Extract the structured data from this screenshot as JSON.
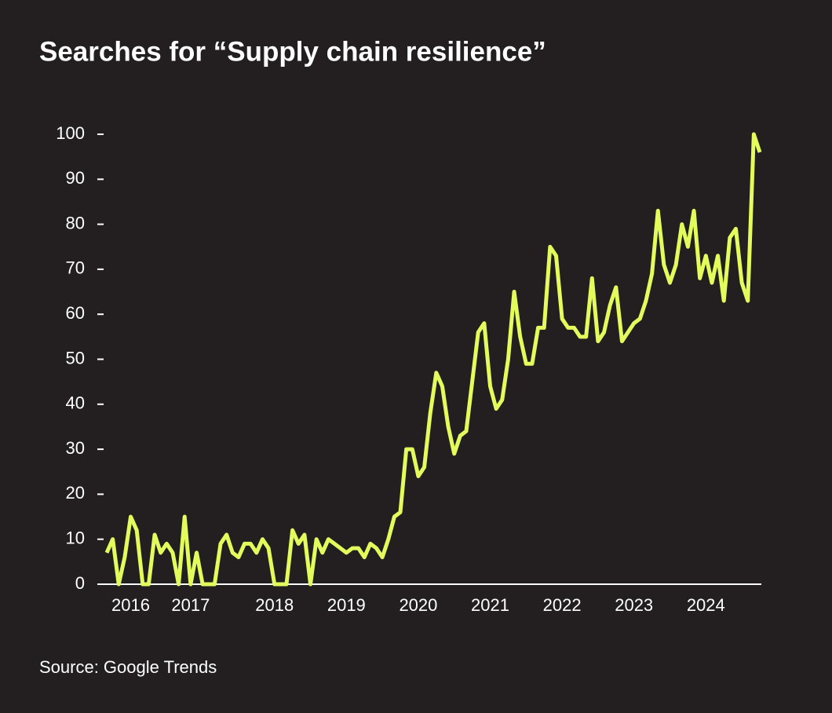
{
  "chart_data": {
    "type": "line",
    "title": "Searches for “Supply chain resilience”",
    "source": "Source: Google Trends",
    "categories": [
      null,
      null,
      null,
      null,
      "2016",
      null,
      null,
      null,
      null,
      null,
      null,
      null,
      null,
      null,
      "2017",
      null,
      null,
      null,
      null,
      null,
      null,
      null,
      null,
      null,
      null,
      null,
      null,
      null,
      "2018",
      null,
      null,
      null,
      null,
      null,
      null,
      null,
      null,
      null,
      null,
      null,
      "2019",
      null,
      null,
      null,
      null,
      null,
      null,
      null,
      null,
      null,
      null,
      null,
      "2020",
      null,
      null,
      null,
      null,
      null,
      null,
      null,
      null,
      null,
      null,
      null,
      "2021",
      null,
      null,
      null,
      null,
      null,
      null,
      null,
      null,
      null,
      null,
      null,
      "2022",
      null,
      null,
      null,
      null,
      null,
      null,
      null,
      null,
      null,
      null,
      null,
      "2023",
      null,
      null,
      null,
      null,
      null,
      null,
      null,
      null,
      null,
      null,
      null,
      "2024",
      null,
      null,
      null,
      null,
      null,
      null,
      null,
      null,
      null
    ],
    "values": [
      7,
      10,
      0,
      6,
      15,
      12,
      0,
      0,
      11,
      7,
      9,
      7,
      0,
      15,
      0,
      7,
      0,
      0,
      0,
      9,
      11,
      7,
      6,
      9,
      9,
      7,
      10,
      8,
      0,
      0,
      0,
      12,
      9,
      11,
      0,
      10,
      7,
      10,
      9,
      8,
      7,
      8,
      8,
      6,
      9,
      8,
      6,
      10,
      15,
      16,
      30,
      30,
      24,
      26,
      38,
      47,
      44,
      35,
      29,
      33,
      34,
      45,
      56,
      58,
      44,
      39,
      41,
      50,
      65,
      55,
      49,
      49,
      57,
      57,
      75,
      73,
      59,
      57,
      57,
      55,
      55,
      68,
      54,
      56,
      62,
      66,
      54,
      56,
      58,
      59,
      63,
      69,
      83,
      71,
      67,
      71,
      80,
      75,
      83,
      68,
      73,
      67,
      73,
      63,
      77,
      79,
      67,
      63,
      100,
      96
    ],
    "color": "#e3fc5c",
    "ylim": [
      0,
      100
    ],
    "yticks": [
      0,
      10,
      20,
      30,
      40,
      50,
      60,
      70,
      80,
      90,
      100
    ]
  }
}
